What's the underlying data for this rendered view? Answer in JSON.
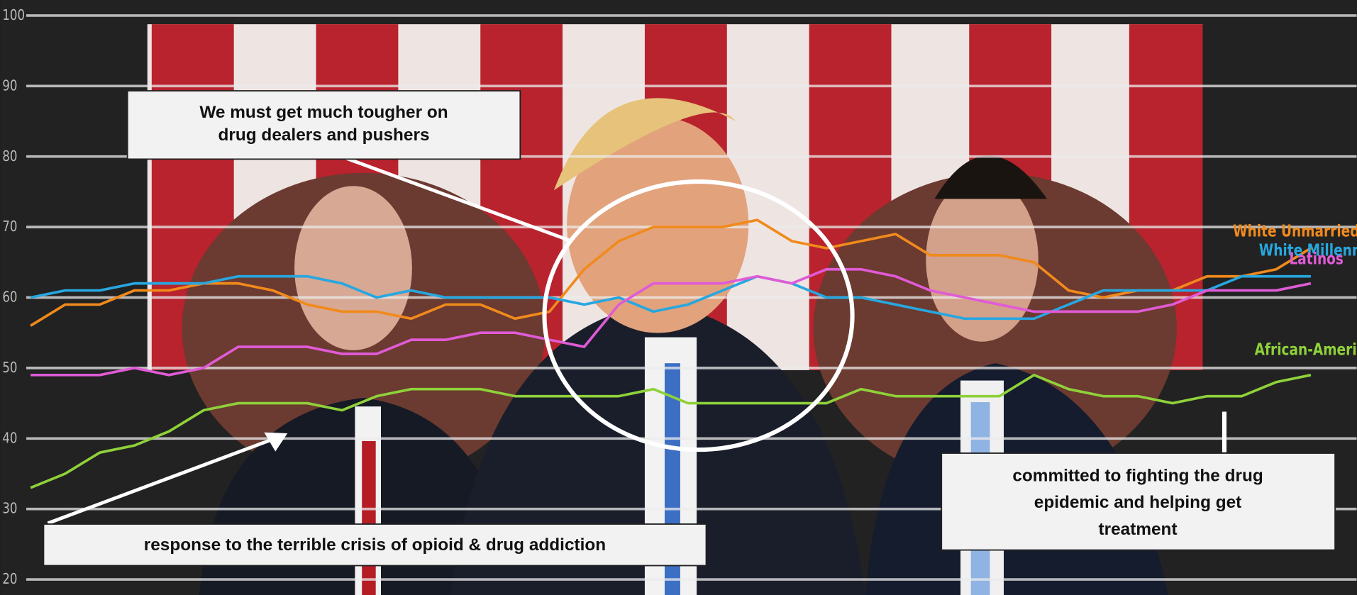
{
  "chart_data": {
    "type": "line",
    "ylim": [
      20,
      100
    ],
    "yticks": [
      20,
      30,
      40,
      50,
      60,
      70,
      80,
      90,
      100
    ],
    "grid": true,
    "series": [
      {
        "name": "White Unmarried W",
        "color": "#f08a1c",
        "values": [
          56,
          59,
          59,
          61,
          61,
          62,
          62,
          61,
          59,
          58,
          58,
          57,
          59,
          59,
          57,
          58,
          64,
          68,
          70,
          70,
          70,
          71,
          68,
          67,
          68,
          69,
          66,
          66,
          66,
          65,
          61,
          60,
          61,
          61,
          63,
          63,
          64,
          67
        ]
      },
      {
        "name": "White Millennia",
        "color": "#27a7e0",
        "values": [
          60,
          61,
          61,
          62,
          62,
          62,
          63,
          63,
          63,
          62,
          60,
          61,
          60,
          60,
          60,
          60,
          59,
          60,
          58,
          59,
          61,
          63,
          62,
          60,
          60,
          59,
          58,
          57,
          57,
          57,
          59,
          61,
          61,
          61,
          61,
          63,
          63,
          63
        ]
      },
      {
        "name": "Latinos",
        "color": "#e05bd6",
        "values": [
          49,
          49,
          49,
          50,
          49,
          50,
          53,
          53,
          53,
          52,
          52,
          54,
          54,
          55,
          55,
          54,
          53,
          59,
          62,
          62,
          62,
          63,
          62,
          64,
          64,
          63,
          61,
          60,
          59,
          58,
          58,
          58,
          58,
          59,
          61,
          61,
          61,
          62
        ]
      },
      {
        "name": "African-America",
        "color": "#8fd13a",
        "values": [
          33,
          35,
          38,
          39,
          41,
          44,
          45,
          45,
          45,
          44,
          46,
          47,
          47,
          47,
          46,
          46,
          46,
          46,
          47,
          45,
          45,
          45,
          45,
          45,
          47,
          46,
          46,
          46,
          46,
          49,
          47,
          46,
          46,
          45,
          46,
          46,
          48,
          49
        ]
      }
    ],
    "annotations": [
      [
        "We must get much tougher on",
        "drug dealers and pushers"
      ],
      [
        "response to the terrible crisis of opioid & drug addiction"
      ],
      [
        "committed to fighting the drug",
        "epidemic and helping get",
        "treatment"
      ]
    ]
  }
}
